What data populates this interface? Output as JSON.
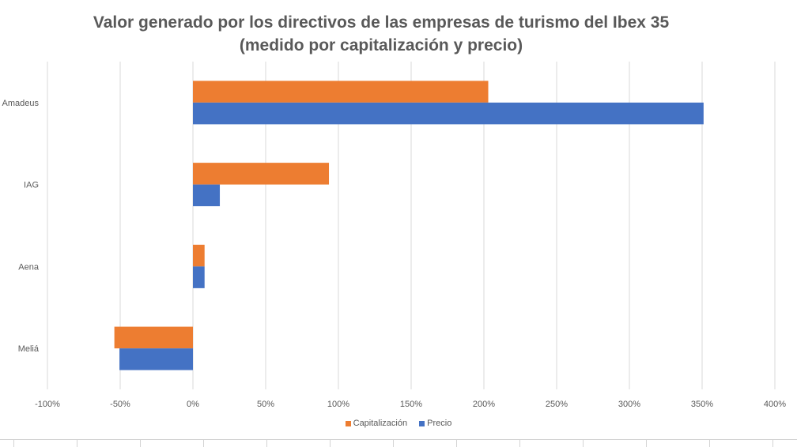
{
  "chart_data": {
    "type": "bar",
    "orientation": "horizontal",
    "title_line1": "Valor generado por los directivos de las empresas de turismo del Ibex 35",
    "title_line2": "(medido por capitalización y precio)",
    "categories": [
      "Amadeus",
      "IAG",
      "Aena",
      "Meliá"
    ],
    "series": [
      {
        "name": "Capitalización",
        "color": "#ED7D31",
        "values": [
          2.03,
          0.935,
          0.08,
          -0.54
        ]
      },
      {
        "name": "Precio",
        "color": "#4472C4",
        "values": [
          3.51,
          0.185,
          0.08,
          -0.505
        ]
      }
    ],
    "xlim": [
      -1,
      4
    ],
    "xticks": [
      "-100%",
      "-50%",
      "0%",
      "50%",
      "100%",
      "150%",
      "200%",
      "250%",
      "300%",
      "350%",
      "400%"
    ],
    "grid": true,
    "legend_position": "bottom"
  }
}
